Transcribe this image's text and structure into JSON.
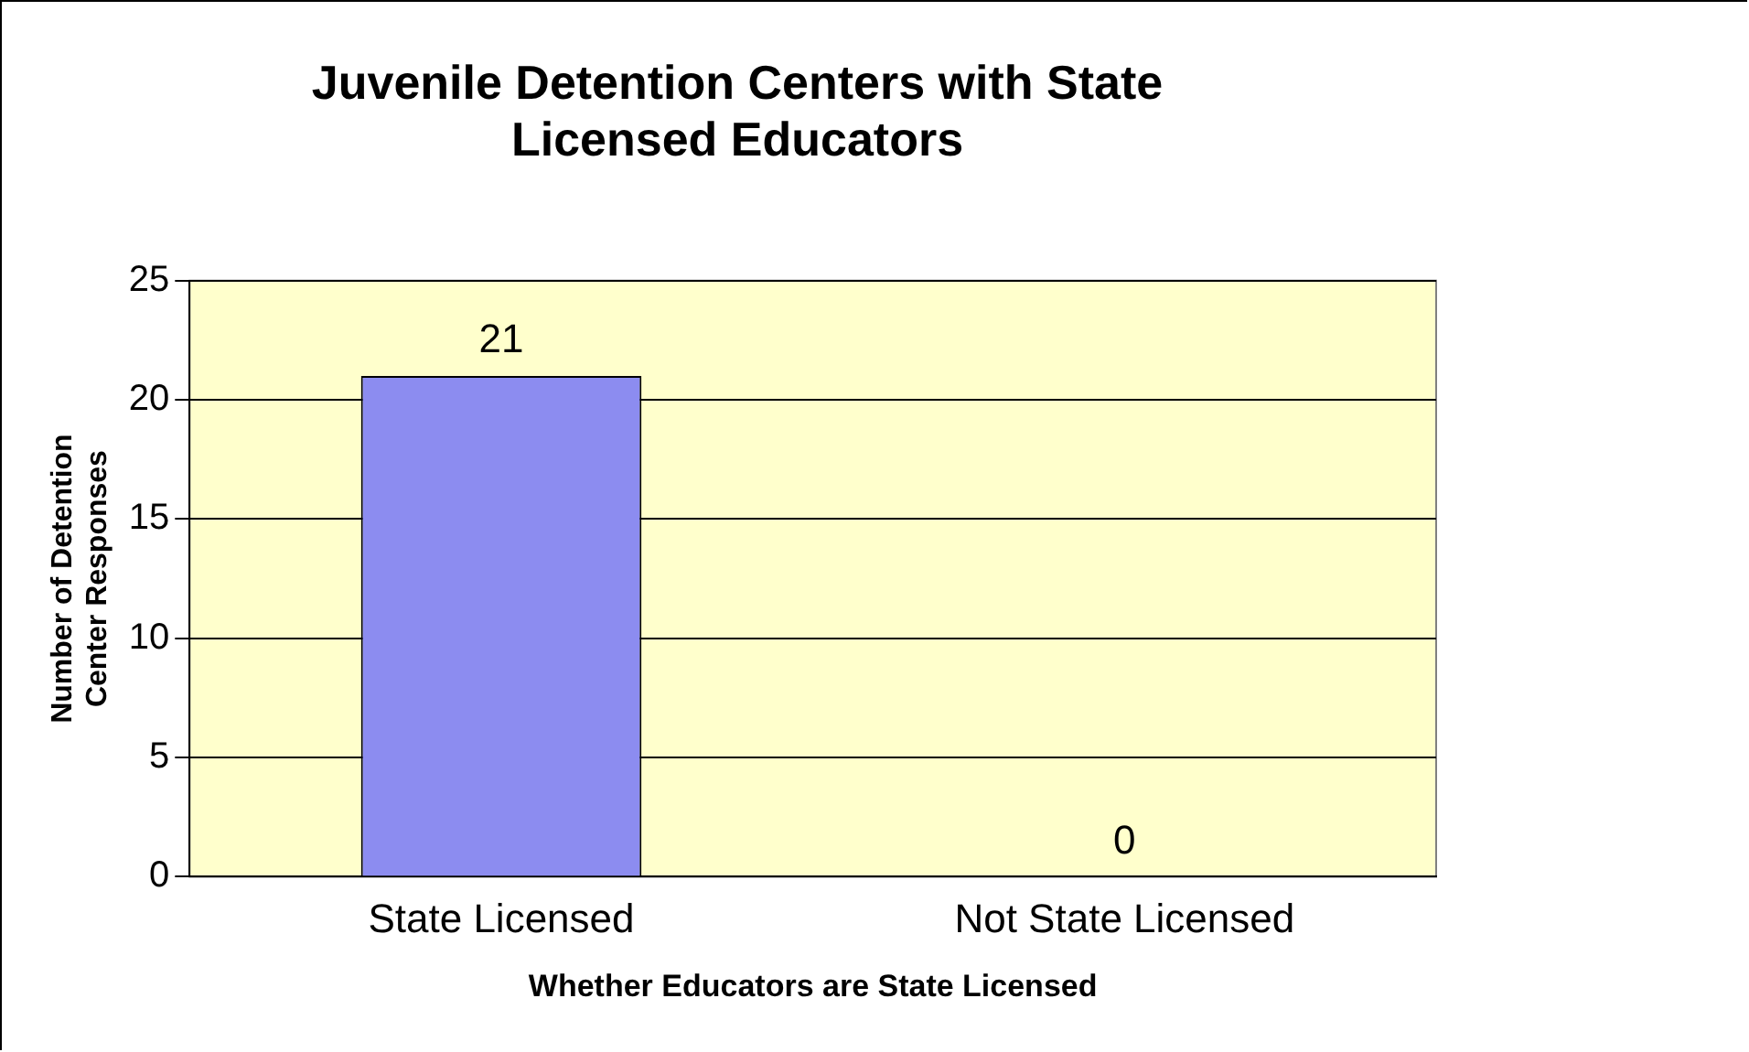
{
  "chart_data": {
    "type": "bar",
    "title": "Juvenile Detention Centers with State Licensed Educators",
    "xlabel": "Whether Educators are State Licensed",
    "ylabel": "Number of Detention Center Responses",
    "categories": [
      "State Licensed",
      "Not State Licensed"
    ],
    "values": [
      21,
      0
    ],
    "color": "#8c8cf0",
    "ylim": [
      0,
      25
    ],
    "yticks": [
      0,
      5,
      10,
      15,
      20,
      25
    ],
    "grid": "y",
    "data_labels": true,
    "legend": false
  }
}
